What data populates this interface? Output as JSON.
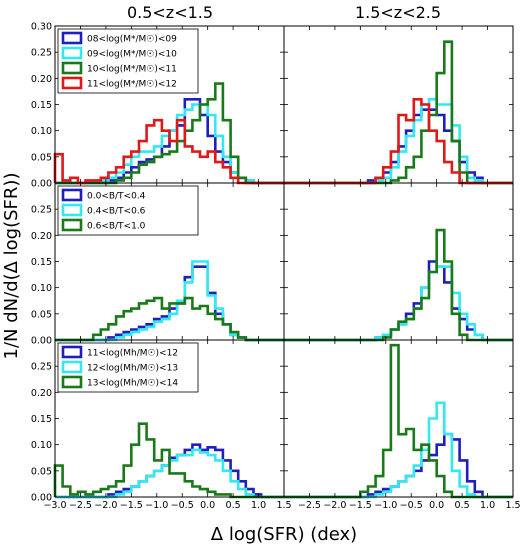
{
  "chart_data": {
    "type": "histogram",
    "layout": "3 rows x 2 columns, shared axes",
    "column_titles": [
      "0.5<z<1.5",
      "1.5<z<2.5"
    ],
    "xlabel": "Δ log(SFR) (dex)",
    "ylabel": "1/N dN/d(Δ log(SFR))",
    "xlim": [
      -3.0,
      1.5
    ],
    "x_ticks": [
      -3.0,
      -2.5,
      -2.0,
      -1.5,
      -1.0,
      -0.5,
      0.0,
      0.5,
      1.0,
      1.5
    ],
    "x_tick_labels": [
      "−3.0",
      "−2.5",
      "−2.0",
      "−1.5",
      "−1.0",
      "−0.5",
      "0.0",
      "0.5",
      "1.0",
      "1.5"
    ],
    "bin_edges": [
      -3.0,
      -2.85,
      -2.7,
      -2.55,
      -2.4,
      -2.25,
      -2.1,
      -1.95,
      -1.8,
      -1.65,
      -1.5,
      -1.35,
      -1.2,
      -1.05,
      -0.9,
      -0.75,
      -0.6,
      -0.45,
      -0.3,
      -0.15,
      0.0,
      0.15,
      0.3,
      0.45,
      0.6,
      0.75,
      0.9,
      1.05,
      1.2,
      1.35,
      1.5
    ],
    "rows": [
      {
        "ylim": [
          0,
          0.3
        ],
        "y_ticks": [
          0.0,
          0.05,
          0.1,
          0.15,
          0.2,
          0.25,
          0.3
        ],
        "y_tick_labels": [
          "0.00",
          "0.05",
          "0.10",
          "0.15",
          "0.20",
          "0.25",
          "0.30"
        ],
        "legend": [
          {
            "label": "08<log(M*/M☉)<09",
            "color": "#1f1fbf"
          },
          {
            "label": "09<log(M*/M☉)<10",
            "color": "#33e8f0"
          },
          {
            "label": "10<log(M*/M☉)<11",
            "color": "#1a7a1a"
          },
          {
            "label": "11<log(M*/M☉)<12",
            "color": "#e01818"
          }
        ],
        "panels": [
          {
            "series": [
              {
                "color": "#1f1fbf",
                "values": [
                  0,
                  0,
                  0,
                  0,
                  0,
                  0,
                  0,
                  0.005,
                  0.01,
                  0.02,
                  0.03,
                  0.04,
                  0.045,
                  0.05,
                  0.07,
                  0.1,
                  0.11,
                  0.16,
                  0.16,
                  0.13,
                  0.09,
                  0.06,
                  0.04,
                  0.02,
                  0.01,
                  0.005,
                  0,
                  0,
                  0,
                  0
                ]
              },
              {
                "color": "#33e8f0",
                "values": [
                  0,
                  0,
                  0,
                  0,
                  0,
                  0,
                  0.005,
                  0.01,
                  0.02,
                  0.035,
                  0.05,
                  0.06,
                  0.06,
                  0.07,
                  0.09,
                  0.1,
                  0.13,
                  0.14,
                  0.15,
                  0.15,
                  0.13,
                  0.09,
                  0.05,
                  0.02,
                  0.01,
                  0.005,
                  0,
                  0,
                  0,
                  0
                ]
              },
              {
                "color": "#1a7a1a",
                "values": [
                  0,
                  0,
                  0,
                  0,
                  0,
                  0,
                  0,
                  0,
                  0.005,
                  0.01,
                  0.02,
                  0.035,
                  0.04,
                  0.05,
                  0.055,
                  0.06,
                  0.08,
                  0.1,
                  0.12,
                  0.15,
                  0.16,
                  0.19,
                  0.12,
                  0.05,
                  0.01,
                  0,
                  0,
                  0,
                  0,
                  0
                ]
              },
              {
                "color": "#e01818",
                "values": [
                  0.055,
                  0.005,
                  0.01,
                  0,
                  0.005,
                  0.005,
                  0.01,
                  0.02,
                  0.03,
                  0.05,
                  0.06,
                  0.08,
                  0.11,
                  0.12,
                  0.1,
                  0.08,
                  0.12,
                  0.07,
                  0.06,
                  0.05,
                  0.06,
                  0.04,
                  0.03,
                  0.01,
                  0,
                  0,
                  0,
                  0,
                  0,
                  0
                ]
              }
            ]
          },
          {
            "series": [
              {
                "color": "#1f1fbf",
                "values": [
                  0,
                  0,
                  0,
                  0,
                  0,
                  0,
                  0,
                  0,
                  0,
                  0,
                  0,
                  0.005,
                  0.01,
                  0.02,
                  0.04,
                  0.07,
                  0.1,
                  0.13,
                  0.14,
                  0.14,
                  0.13,
                  0.1,
                  0.08,
                  0.04,
                  0.02,
                  0.01,
                  0,
                  0,
                  0,
                  0
                ]
              },
              {
                "color": "#33e8f0",
                "values": [
                  0,
                  0,
                  0,
                  0,
                  0,
                  0,
                  0,
                  0,
                  0,
                  0,
                  0,
                  0,
                  0.005,
                  0.01,
                  0.03,
                  0.06,
                  0.09,
                  0.12,
                  0.15,
                  0.16,
                  0.15,
                  0.15,
                  0.11,
                  0.05,
                  0.01,
                  0.005,
                  0,
                  0,
                  0,
                  0
                ]
              },
              {
                "color": "#1a7a1a",
                "values": [
                  0,
                  0,
                  0,
                  0,
                  0,
                  0,
                  0,
                  0,
                  0,
                  0,
                  0,
                  0,
                  0,
                  0,
                  0.005,
                  0.01,
                  0.03,
                  0.05,
                  0.1,
                  0.13,
                  0.21,
                  0.27,
                  0.08,
                  0.02,
                  0,
                  0,
                  0,
                  0,
                  0,
                  0
                ]
              },
              {
                "color": "#e01818",
                "values": [
                  0,
                  0,
                  0,
                  0,
                  0,
                  0,
                  0,
                  0,
                  0,
                  0,
                  0,
                  0,
                  0.01,
                  0.03,
                  0.06,
                  0.13,
                  0.12,
                  0.16,
                  0.15,
                  0.1,
                  0.08,
                  0.04,
                  0.02,
                  0,
                  0,
                  0,
                  0,
                  0,
                  0,
                  0
                ]
              }
            ]
          }
        ]
      },
      {
        "ylim": [
          0,
          0.3
        ],
        "y_ticks": [
          0.0,
          0.05,
          0.1,
          0.15,
          0.2,
          0.25
        ],
        "y_tick_labels": [
          "0.00",
          "0.05",
          "0.10",
          "0.15",
          "0.20",
          "0.25"
        ],
        "legend": [
          {
            "label": "0.0<B/T<0.4",
            "color": "#1f1fbf"
          },
          {
            "label": "0.4<B/T<0.6",
            "color": "#33e8f0"
          },
          {
            "label": "0.6<B/T<1.0",
            "color": "#1a7a1a"
          }
        ],
        "panels": [
          {
            "series": [
              {
                "color": "#1f1fbf",
                "values": [
                  0,
                  0,
                  0,
                  0,
                  0,
                  0,
                  0,
                  0.005,
                  0.01,
                  0.015,
                  0.02,
                  0.025,
                  0.03,
                  0.04,
                  0.045,
                  0.06,
                  0.07,
                  0.12,
                  0.14,
                  0.14,
                  0.09,
                  0.05,
                  0.03,
                  0.01,
                  0.005,
                  0,
                  0,
                  0,
                  0,
                  0
                ]
              },
              {
                "color": "#33e8f0",
                "values": [
                  0,
                  0,
                  0,
                  0,
                  0,
                  0,
                  0,
                  0,
                  0.005,
                  0.01,
                  0.015,
                  0.02,
                  0.025,
                  0.035,
                  0.04,
                  0.05,
                  0.075,
                  0.11,
                  0.15,
                  0.15,
                  0.085,
                  0.06,
                  0.03,
                  0.01,
                  0.005,
                  0,
                  0,
                  0,
                  0,
                  0
                ]
              },
              {
                "color": "#1a7a1a",
                "values": [
                  0,
                  0,
                  0,
                  0,
                  0,
                  0.01,
                  0.02,
                  0.03,
                  0.045,
                  0.055,
                  0.06,
                  0.07,
                  0.075,
                  0.08,
                  0.06,
                  0.07,
                  0.07,
                  0.08,
                  0.06,
                  0.065,
                  0.05,
                  0.04,
                  0.03,
                  0.015,
                  0.005,
                  0,
                  0,
                  0,
                  0,
                  0
                ]
              }
            ]
          },
          {
            "series": [
              {
                "color": "#1f1fbf",
                "values": [
                  0,
                  0,
                  0,
                  0,
                  0,
                  0,
                  0,
                  0,
                  0,
                  0,
                  0,
                  0,
                  0.005,
                  0.01,
                  0.02,
                  0.03,
                  0.05,
                  0.07,
                  0.1,
                  0.15,
                  0.14,
                  0.11,
                  0.06,
                  0.04,
                  0.02,
                  0.01,
                  0,
                  0,
                  0,
                  0
                ]
              },
              {
                "color": "#33e8f0",
                "values": [
                  0,
                  0,
                  0,
                  0,
                  0,
                  0,
                  0,
                  0,
                  0,
                  0,
                  0,
                  0,
                  0.005,
                  0.01,
                  0.02,
                  0.03,
                  0.04,
                  0.06,
                  0.1,
                  0.13,
                  0.14,
                  0.14,
                  0.09,
                  0.05,
                  0.03,
                  0.01,
                  0,
                  0,
                  0,
                  0
                ]
              },
              {
                "color": "#1a7a1a",
                "values": [
                  0,
                  0,
                  0,
                  0,
                  0,
                  0,
                  0,
                  0,
                  0,
                  0,
                  0,
                  0,
                  0,
                  0.005,
                  0.02,
                  0.035,
                  0.04,
                  0.06,
                  0.08,
                  0.13,
                  0.21,
                  0.15,
                  0.05,
                  0.01,
                  0,
                  0,
                  0,
                  0,
                  0,
                  0
                ]
              }
            ]
          }
        ]
      },
      {
        "ylim": [
          0,
          0.3
        ],
        "y_ticks": [
          0.0,
          0.05,
          0.1,
          0.15,
          0.2,
          0.25
        ],
        "y_tick_labels": [
          "0.00",
          "0.05",
          "0.10",
          "0.15",
          "0.20",
          "0.25"
        ],
        "legend": [
          {
            "label": "11<log(Mh/M☉)<12",
            "color": "#1f1fbf"
          },
          {
            "label": "12<log(Mh/M☉)<13",
            "color": "#33e8f0"
          },
          {
            "label": "13<log(Mh/M☉)<14",
            "color": "#1a7a1a"
          }
        ],
        "panels": [
          {
            "series": [
              {
                "color": "#1f1fbf",
                "values": [
                  0,
                  0,
                  0,
                  0,
                  0,
                  0,
                  0,
                  0.005,
                  0.01,
                  0.015,
                  0.02,
                  0.03,
                  0.04,
                  0.05,
                  0.06,
                  0.075,
                  0.08,
                  0.09,
                  0.1,
                  0.09,
                  0.095,
                  0.09,
                  0.07,
                  0.05,
                  0.03,
                  0.015,
                  0.005,
                  0,
                  0,
                  0
                ]
              },
              {
                "color": "#33e8f0",
                "values": [
                  0,
                  0,
                  0,
                  0,
                  0,
                  0,
                  0,
                  0,
                  0.005,
                  0.01,
                  0.02,
                  0.03,
                  0.04,
                  0.05,
                  0.06,
                  0.07,
                  0.08,
                  0.08,
                  0.09,
                  0.085,
                  0.08,
                  0.07,
                  0.05,
                  0.03,
                  0.015,
                  0.005,
                  0,
                  0,
                  0,
                  0
                ]
              },
              {
                "color": "#1a7a1a",
                "values": [
                  0.06,
                  0.02,
                  0.005,
                  0.01,
                  0.005,
                  0.01,
                  0.015,
                  0.02,
                  0.03,
                  0.06,
                  0.1,
                  0.14,
                  0.11,
                  0.07,
                  0.09,
                  0.045,
                  0.045,
                  0.03,
                  0.02,
                  0.015,
                  0.01,
                  0.005,
                  0.005,
                  0,
                  0,
                  0,
                  0,
                  0,
                  0,
                  0
                ]
              }
            ]
          },
          {
            "series": [
              {
                "color": "#1f1fbf",
                "values": [
                  0,
                  0,
                  0,
                  0,
                  0,
                  0,
                  0,
                  0,
                  0,
                  0,
                  0,
                  0.005,
                  0.01,
                  0.015,
                  0.02,
                  0.03,
                  0.04,
                  0.05,
                  0.07,
                  0.08,
                  0.1,
                  0.12,
                  0.11,
                  0.07,
                  0.03,
                  0.01,
                  0,
                  0,
                  0,
                  0
                ]
              },
              {
                "color": "#33e8f0",
                "values": [
                  0,
                  0,
                  0,
                  0,
                  0,
                  0,
                  0,
                  0,
                  0,
                  0,
                  0,
                  0,
                  0.005,
                  0.01,
                  0.02,
                  0.03,
                  0.04,
                  0.06,
                  0.09,
                  0.15,
                  0.18,
                  0.12,
                  0.05,
                  0.02,
                  0.005,
                  0,
                  0,
                  0,
                  0,
                  0
                ]
              },
              {
                "color": "#1a7a1a",
                "values": [
                  0,
                  0,
                  0,
                  0,
                  0,
                  0,
                  0,
                  0,
                  0,
                  0,
                  0.01,
                  0.02,
                  0.04,
                  0.09,
                  0.29,
                  0.12,
                  0.13,
                  0.09,
                  0.1,
                  0.07,
                  0.04,
                  0.01,
                  0,
                  0,
                  0,
                  0,
                  0,
                  0,
                  0,
                  0
                ]
              }
            ]
          }
        ]
      }
    ]
  }
}
